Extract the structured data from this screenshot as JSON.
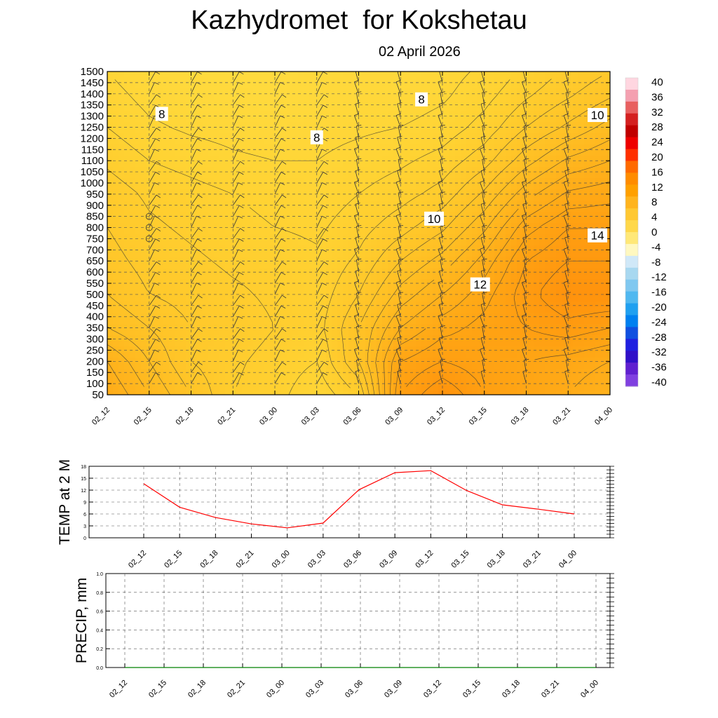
{
  "title": "Kazhydromet  for Kokshetau",
  "subtitle": "02 April 2026",
  "chart_data": [
    {
      "type": "heatmap",
      "name": "cross-section",
      "title": "Kazhydromet  for Kokshetau",
      "subtitle": "02 April 2026",
      "x_ticks": [
        "02_12",
        "02_15",
        "02_18",
        "02_21",
        "03_00",
        "03_03",
        "03_06",
        "03_09",
        "03_12",
        "03_15",
        "03_18",
        "03_21",
        "04_00"
      ],
      "y_ticks": [
        50,
        100,
        150,
        200,
        250,
        300,
        350,
        400,
        450,
        500,
        550,
        600,
        650,
        700,
        750,
        800,
        850,
        900,
        950,
        1000,
        1050,
        1100,
        1150,
        1200,
        1250,
        1300,
        1350,
        1400,
        1450,
        1500
      ],
      "ylim": [
        50,
        1500
      ],
      "contour_labels": [
        {
          "label": "8",
          "x_index": 1.3,
          "y_value": 1310
        },
        {
          "label": "8",
          "x_index": 5.0,
          "y_value": 1205
        },
        {
          "label": "8",
          "x_index": 7.5,
          "y_value": 1375
        },
        {
          "label": "10",
          "x_index": 7.8,
          "y_value": 840
        },
        {
          "label": "10",
          "x_index": 11.7,
          "y_value": 1305
        },
        {
          "label": "12",
          "x_index": 8.9,
          "y_value": 545
        },
        {
          "label": "14",
          "x_index": 11.7,
          "y_value": 765
        }
      ],
      "temperature_field": {
        "description": "temperature in degC, rows = height levels 50..1500 step 150, cols = time steps",
        "levels": [
          50,
          200,
          350,
          500,
          650,
          800,
          950,
          1100,
          1250,
          1400,
          1500
        ],
        "values": [
          [
            12.5,
            11.5,
            10.5,
            9.5,
            9.2,
            8.6,
            9.5,
            13.5,
            14.5,
            13.5,
            13.0,
            12.5,
            12.0
          ],
          [
            12.0,
            11.0,
            10.0,
            9.6,
            9.3,
            9.0,
            10.5,
            13.0,
            13.5,
            13.2,
            13.0,
            12.8,
            12.5
          ],
          [
            11.0,
            10.5,
            10.0,
            9.8,
            9.5,
            9.3,
            10.5,
            12.0,
            12.8,
            13.2,
            13.5,
            13.8,
            13.5
          ],
          [
            10.5,
            10.0,
            9.8,
            9.6,
            9.4,
            9.2,
            10.0,
            11.2,
            12.0,
            12.8,
            13.8,
            14.5,
            14.5
          ],
          [
            10.2,
            9.8,
            9.6,
            9.4,
            9.3,
            9.1,
            9.6,
            10.5,
            11.2,
            12.2,
            13.5,
            14.0,
            14.0
          ],
          [
            10.0,
            9.6,
            9.4,
            9.2,
            9.0,
            8.9,
            9.3,
            9.8,
            10.4,
            11.4,
            12.8,
            13.5,
            13.5
          ],
          [
            9.8,
            9.4,
            9.2,
            9.0,
            8.8,
            8.7,
            9.0,
            9.3,
            9.7,
            10.6,
            11.8,
            12.6,
            12.8
          ],
          [
            9.4,
            9.0,
            8.8,
            8.6,
            8.5,
            8.5,
            8.7,
            8.9,
            9.2,
            9.8,
            10.8,
            11.6,
            12.0
          ],
          [
            9.0,
            8.6,
            8.4,
            8.3,
            8.2,
            8.3,
            8.4,
            8.5,
            8.7,
            9.2,
            10.0,
            10.6,
            11.2
          ],
          [
            8.7,
            8.3,
            8.1,
            8.0,
            7.9,
            8.1,
            8.2,
            8.2,
            8.4,
            8.8,
            9.4,
            9.9,
            10.4
          ],
          [
            8.5,
            8.1,
            7.9,
            7.8,
            7.8,
            8.0,
            8.1,
            8.1,
            8.3,
            8.6,
            9.1,
            9.6,
            10.0
          ]
        ]
      }
    },
    {
      "type": "line",
      "name": "temp-2m",
      "ylabel": "TEMP at 2 M",
      "categories": [
        "02_12",
        "02_15",
        "02_18",
        "02_21",
        "03_00",
        "03_03",
        "03_06",
        "03_09",
        "03_12",
        "03_15",
        "03_18",
        "03_21",
        "04_00"
      ],
      "values": [
        13.6,
        7.7,
        5.1,
        3.5,
        2.5,
        3.7,
        12.1,
        16.4,
        16.9,
        11.9,
        8.3,
        7.2,
        6.0
      ],
      "ylim": [
        0,
        18
      ],
      "y_ticks": [
        0,
        3,
        6,
        9,
        12,
        15,
        18
      ],
      "line_color": "#ff0000"
    },
    {
      "type": "line",
      "name": "precip",
      "ylabel": "PRECIP, mm",
      "categories": [
        "02_12",
        "02_15",
        "02_18",
        "02_21",
        "03_00",
        "03_03",
        "03_06",
        "03_09",
        "03_12",
        "03_15",
        "03_18",
        "03_21",
        "04_00"
      ],
      "values": [
        0,
        0,
        0,
        0,
        0,
        0,
        0,
        0,
        0,
        0,
        0,
        0,
        0
      ],
      "ylim": [
        0,
        1.0
      ],
      "y_ticks": [
        "0.0",
        "0.2",
        "0.4",
        "0.6",
        "0.8",
        "1.0"
      ],
      "line_color": "#008000"
    }
  ],
  "colorbar": {
    "labels": [
      "40",
      "36",
      "32",
      "28",
      "24",
      "20",
      "16",
      "12",
      "8",
      "4",
      "0",
      "-4",
      "-8",
      "-12",
      "-16",
      "-20",
      "-24",
      "-28",
      "-32",
      "-36",
      "-40"
    ],
    "colors": [
      "#ffd6e0",
      "#f4a0b0",
      "#e86060",
      "#d42020",
      "#c00000",
      "#ee0000",
      "#ff3000",
      "#ff6a00",
      "#ff8c00",
      "#ffa000",
      "#ffb41e",
      "#ffc832",
      "#ffd84a",
      "#ffe878",
      "#fff8c0",
      "#d0e8f8",
      "#a8d8f0",
      "#80c8f0",
      "#50b8f0",
      "#20a0f0",
      "#0080f0",
      "#1050e0",
      "#2020e0",
      "#3010c8",
      "#6020d0",
      "#8040e0"
    ]
  }
}
